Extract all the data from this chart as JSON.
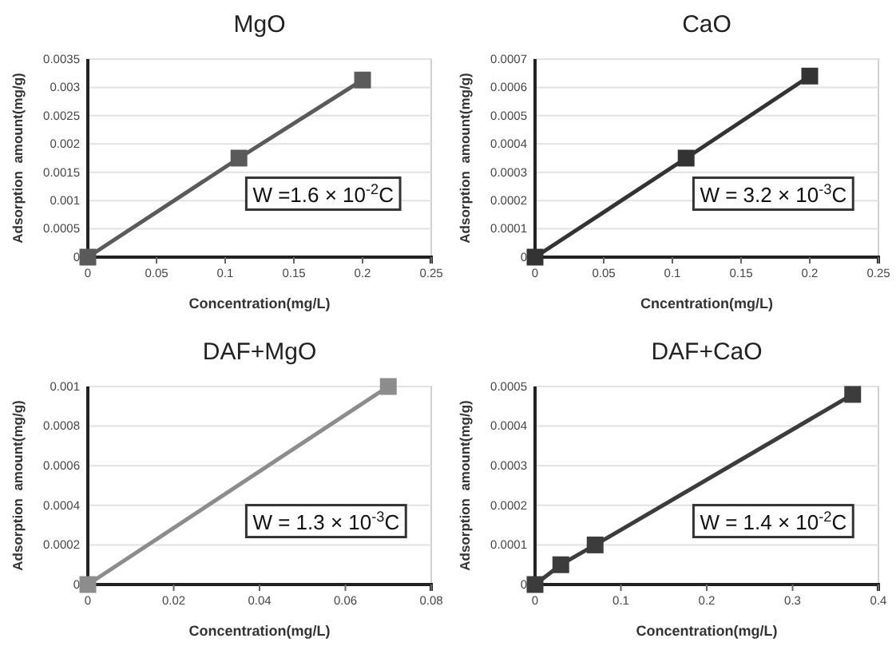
{
  "chart_data": [
    {
      "type": "line",
      "title": "MgO",
      "xlabel": "Concentration(mg/L)",
      "ylabel": "Adsorption  amount(mg/g)",
      "x": [
        0,
        0.11,
        0.2
      ],
      "series": [
        {
          "color": "#5a5a5a",
          "values": [
            0,
            0.00175,
            0.00313
          ]
        }
      ],
      "xlim": [
        0,
        0.25
      ],
      "xticks": [
        0,
        0.05,
        0.1,
        0.15,
        0.2,
        0.25
      ],
      "ylim": [
        0,
        0.0035
      ],
      "yticks": [
        0,
        0.0005,
        0.001,
        0.0015,
        0.002,
        0.0025,
        0.003,
        0.0035
      ],
      "grid": "y",
      "marker": "square",
      "line_style": "solid",
      "annotations": [
        "W =1.6 × 10$^{-2}$C"
      ]
    },
    {
      "type": "line",
      "title": "CaO",
      "xlabel": "Cncentration(mg/L)",
      "ylabel": "Adsorption  amount(mg/g)",
      "x": [
        0,
        0.11,
        0.2
      ],
      "series": [
        {
          "color": "#333333",
          "values": [
            0,
            0.00035,
            0.00064
          ]
        }
      ],
      "xlim": [
        0,
        0.25
      ],
      "xticks": [
        0,
        0.05,
        0.1,
        0.15,
        0.2,
        0.25
      ],
      "ylim": [
        0,
        0.0007
      ],
      "yticks": [
        0,
        0.0001,
        0.0002,
        0.0003,
        0.0004,
        0.0005,
        0.0006,
        0.0007
      ],
      "grid": "y",
      "marker": "square",
      "line_style": "solid",
      "annotations": [
        "W = 3.2 × 10$^{-3}$C"
      ]
    },
    {
      "type": "line",
      "title": "DAF+MgO",
      "xlabel": "Concentration(mg/L)",
      "ylabel": "Adsorption  amount(mg/g)",
      "x": [
        0,
        0.07
      ],
      "series": [
        {
          "color": "#8c8c8c",
          "values": [
            0,
            0.001
          ]
        }
      ],
      "xlim": [
        0,
        0.08
      ],
      "xticks": [
        0,
        0.02,
        0.04,
        0.06,
        0.08
      ],
      "ylim": [
        0,
        0.001
      ],
      "yticks": [
        0,
        0.0002,
        0.0004,
        0.0006,
        0.0008,
        0.001
      ],
      "grid": "y",
      "marker": "square",
      "line_style": "solid",
      "annotations": [
        "W = 1.3 × 10$^{-3}$C"
      ]
    },
    {
      "type": "line",
      "title": "DAF+CaO",
      "xlabel": "Concentration(mg/L)",
      "ylabel": "Adsorption  amount(mg/g)",
      "x": [
        0,
        0.03,
        0.07,
        0.37
      ],
      "series": [
        {
          "color": "#3c3c3c",
          "values": [
            0,
            5e-05,
            0.0001,
            0.00048
          ]
        }
      ],
      "xlim": [
        0,
        0.4
      ],
      "xticks": [
        0,
        0.1,
        0.2,
        0.3,
        0.4
      ],
      "ylim": [
        0,
        0.0005
      ],
      "yticks": [
        0,
        0.0001,
        0.0002,
        0.0003,
        0.0004,
        0.0005
      ],
      "grid": "y",
      "marker": "square",
      "line_style": "solid",
      "annotations": [
        "W = 1.4 × 10$^{-2}$C"
      ]
    }
  ]
}
